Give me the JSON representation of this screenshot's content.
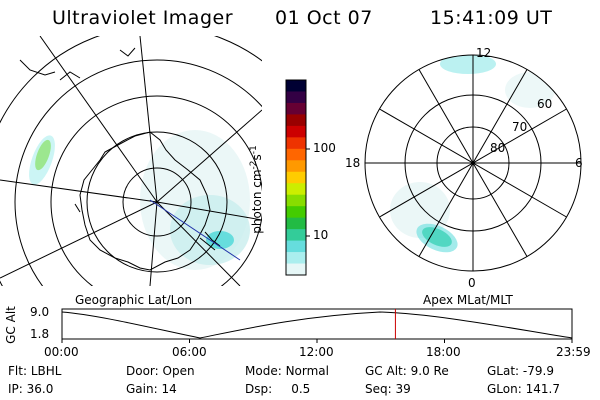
{
  "header": {
    "instrument": "Ultraviolet Imager",
    "date": "01 Oct 07",
    "time": "15:41:09 UT"
  },
  "geographic_panel": {
    "caption": "Geographic Lat/Lon"
  },
  "apex_panel": {
    "caption": "Apex MLat/MLT",
    "mlt_labels": {
      "top": "12",
      "right": "6",
      "bottom": "0",
      "left": "18"
    },
    "lat_labels": [
      "60",
      "70",
      "80"
    ]
  },
  "colorbar": {
    "unit_label": "photon cm",
    "unit_sup1": "-2",
    "unit_s": "s",
    "unit_sup2": "-1",
    "ticks": [
      "100",
      "10"
    ],
    "scale": "log",
    "colors": [
      "#000033",
      "#330044",
      "#660033",
      "#990000",
      "#cc0000",
      "#ee3300",
      "#ff6600",
      "#ff9900",
      "#ffcc00",
      "#ccee00",
      "#88dd00",
      "#44cc00",
      "#22bb44",
      "#33cc99",
      "#66dddd",
      "#aaeeee",
      "#e6f7f7"
    ]
  },
  "altitude_strip": {
    "ylabel": "GC Alt",
    "yticks": [
      "9.0",
      "1.8"
    ],
    "xticks": [
      "00:00",
      "06:00",
      "12:00",
      "18:00",
      "23:59"
    ],
    "current_time_hours": 15.69,
    "marker_color": "#cc0000"
  },
  "info": {
    "row1": [
      {
        "key": "Flt:",
        "val": "LBHL"
      },
      {
        "key": "Door:",
        "val": "Open"
      },
      {
        "key": "Mode:",
        "val": "Normal"
      },
      {
        "key": "GC Alt:",
        "val": "9.0 Re"
      },
      {
        "key": "GLat:",
        "val": "-79.9"
      }
    ],
    "row2": [
      {
        "key": "IP:",
        "val": "36.0"
      },
      {
        "key": "Gain:",
        "val": "14"
      },
      {
        "key": "Dsp:",
        "val": "0.5"
      },
      {
        "key": "Seq:",
        "val": "39"
      },
      {
        "key": "GLon:",
        "val": "141.7"
      }
    ]
  }
}
